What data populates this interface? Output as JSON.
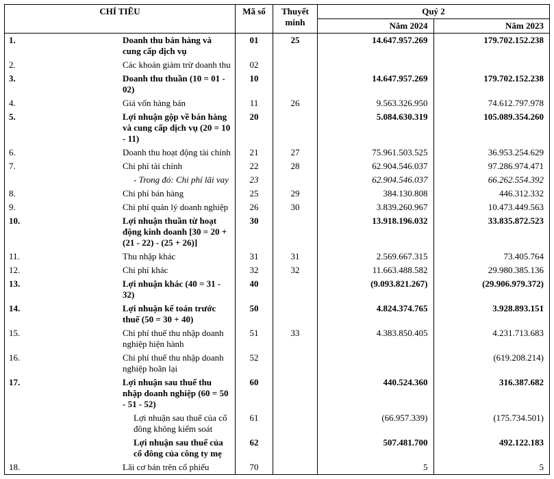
{
  "header": {
    "chi_tieu": "CHỈ TIÊU",
    "ma_so": "Mã số",
    "thuyet_minh": "Thuyết minh",
    "quy": "Quý 2",
    "nam_2024": "Năm 2024",
    "nam_2023": "Năm 2023"
  },
  "rows": [
    {
      "n": "1.",
      "label": "Doanh thu bán hàng và cung cấp dịch vụ",
      "bold": true,
      "maso": "01",
      "tm": "25",
      "v24": "14.647.957.269",
      "v23": "179.702.152.238"
    },
    {
      "n": "2.",
      "label": "Các khoản giảm trừ doanh thu",
      "maso": "02",
      "tm": "",
      "v24": "",
      "v23": ""
    },
    {
      "n": "3.",
      "label": "Doanh thu thuần (10 = 01 - 02)",
      "bold": true,
      "maso": "10",
      "tm": "",
      "v24": "14.647.957.269",
      "v23": "179.702.152.238"
    },
    {
      "n": "4.",
      "label": "Giá vốn hàng bán",
      "maso": "11",
      "tm": "26",
      "v24": "9.563.326.950",
      "v23": "74.612.797.978"
    },
    {
      "n": "5.",
      "label": "Lợi nhuận gộp về bán hàng và cung cấp dịch vụ (20 = 10 - 11)",
      "bold": true,
      "maso": "20",
      "tm": "",
      "v24": "5.084.630.319",
      "v23": "105.089.354.260"
    },
    {
      "n": "6.",
      "label": "Doanh thu hoạt động tài chính",
      "maso": "21",
      "tm": "27",
      "v24": "75.961.503.525",
      "v23": "36.953.254.629"
    },
    {
      "n": "7.",
      "label": "Chi phí tài chính",
      "maso": "22",
      "tm": "28",
      "v24": "62.904.546.037",
      "v23": "97.286.974.471"
    },
    {
      "n": "",
      "label": "- Trong đó: Chi phí lãi vay",
      "italic": true,
      "indent": true,
      "maso": "23",
      "tm": "",
      "v24": "62.904.546.037",
      "v23": "66.262.554.392"
    },
    {
      "n": "8.",
      "label": "Chi phí bán hàng",
      "maso": "25",
      "tm": "29",
      "v24": "384.130.808",
      "v23": "446.312.332"
    },
    {
      "n": "9.",
      "label": "Chi phí quản lý doanh nghiệp",
      "maso": "26",
      "tm": "30",
      "v24": "3.839.260.967",
      "v23": "10.473.449.563"
    },
    {
      "n": "10.",
      "label": "Lợi nhuận thuần từ hoạt động kinh doanh [30 = 20 + (21 - 22) - (25 + 26)]",
      "bold": true,
      "maso": "30",
      "tm": "",
      "v24": "13.918.196.032",
      "v23": "33.835.872.523"
    },
    {
      "n": "11.",
      "label": "Thu nhập khác",
      "maso": "31",
      "tm": "31",
      "v24": "2.569.667.315",
      "v23": "73.405.764"
    },
    {
      "n": "12.",
      "label": "Chi phí khác",
      "maso": "32",
      "tm": "32",
      "v24": "11.663.488.582",
      "v23": "29.980.385.136"
    },
    {
      "n": "13.",
      "label": "Lợi nhuận khác (40 = 31 - 32)",
      "bold": true,
      "maso": "40",
      "tm": "",
      "v24": "(9.093.821.267)",
      "v23": "(29.906.979.372)"
    },
    {
      "n": "14.",
      "label": "Lợi nhuận kế toán trước thuế (50 = 30 + 40)",
      "bold": true,
      "maso": "50",
      "tm": "",
      "v24": "4.824.374.765",
      "v23": "3.928.893.151"
    },
    {
      "n": "15.",
      "label": "Chi phí thuế thu nhập doanh nghiệp hiện hành",
      "maso": "51",
      "tm": "33",
      "v24": "4.383.850.405",
      "v23": "4.231.713.683"
    },
    {
      "n": "16.",
      "label": "Chi phí thuế thu nhập doanh nghiệp hoãn lại",
      "maso": "52",
      "tm": "",
      "v24": "",
      "v23": "(619.208.214)"
    },
    {
      "n": "17.",
      "label": "Lợi nhuận sau thuế thu nhập doanh nghiệp (60 = 50 - 51 - 52)",
      "bold": true,
      "maso": "60",
      "tm": "",
      "v24": "440.524.360",
      "v23": "316.387.682"
    },
    {
      "n": "",
      "label": "Lợi nhuận sau thuế của cổ đông không kiểm soát",
      "indent": true,
      "maso": "61",
      "tm": "",
      "v24": "(66.957.339)",
      "v23": "(175.734.501)"
    },
    {
      "n": "",
      "label": "Lợi nhuận sau thuế của cổ đông của công ty mẹ",
      "bold": true,
      "indent": true,
      "maso": "62",
      "tm": "",
      "v24": "507.481.700",
      "v23": "492.122.183"
    },
    {
      "n": "18.",
      "label": "Lãi cơ bản trên cổ phiếu",
      "maso": "70",
      "tm": "",
      "v24": "5",
      "v23": "5"
    }
  ]
}
